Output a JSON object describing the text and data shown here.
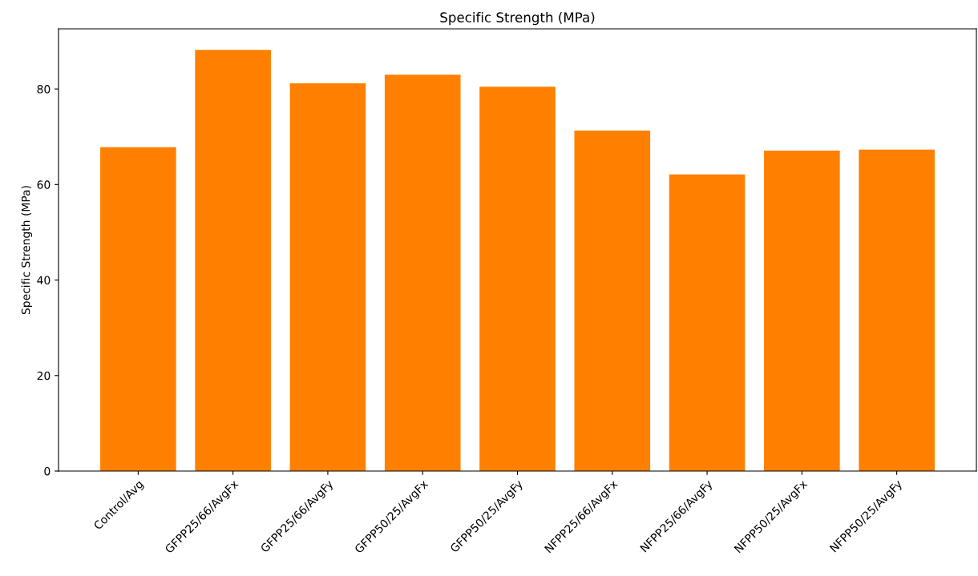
{
  "chart_data": {
    "type": "bar",
    "title": "Specific Strength (MPa)",
    "ylabel": "Specific Strength (MPa)",
    "categories": [
      "Control/Avg",
      "GFPP25/66/AvgFx",
      "GFPP25/66/AvgFy",
      "GFPP50/25/AvgFx",
      "GFPP50/25/AvgFy",
      "NFPP25/66/AvgFx",
      "NFPP25/66/AvgFy",
      "NFPP50/25/AvgFx",
      "NFPP50/25/AvgFy"
    ],
    "values": [
      67.8,
      88.2,
      81.2,
      83.0,
      80.5,
      71.3,
      62.1,
      67.1,
      67.3
    ],
    "color": "#ff8000",
    "ylim": [
      0,
      92.6
    ],
    "yticks": [
      0,
      20,
      40,
      60,
      80
    ],
    "grid": false,
    "legend": false
  }
}
